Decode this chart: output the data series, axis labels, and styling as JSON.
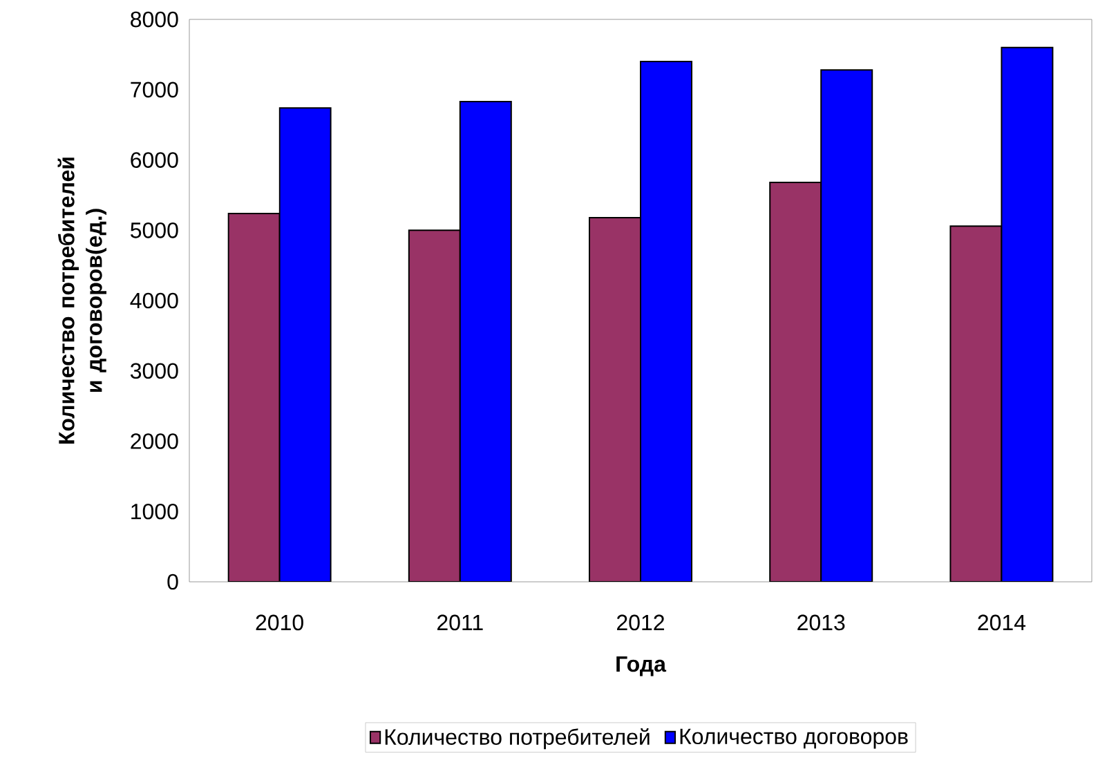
{
  "chart_data": {
    "type": "bar",
    "xlabel": "Года",
    "ylabel": "Количество потребителей и договоров(ед.)",
    "categories": [
      "2010",
      "2011",
      "2012",
      "2013",
      "2014"
    ],
    "series": [
      {
        "name": "Количество потребителей",
        "color": "#993366",
        "values": [
          5240,
          5000,
          5180,
          5680,
          5060
        ]
      },
      {
        "name": "Количество договоров",
        "color": "#0000ff",
        "values": [
          6740,
          6830,
          7400,
          7280,
          7600
        ]
      }
    ],
    "ylim": [
      0,
      8000
    ],
    "yticks": [
      0,
      1000,
      2000,
      3000,
      4000,
      5000,
      6000,
      7000,
      8000
    ],
    "grid": false,
    "legend": "bottom"
  }
}
